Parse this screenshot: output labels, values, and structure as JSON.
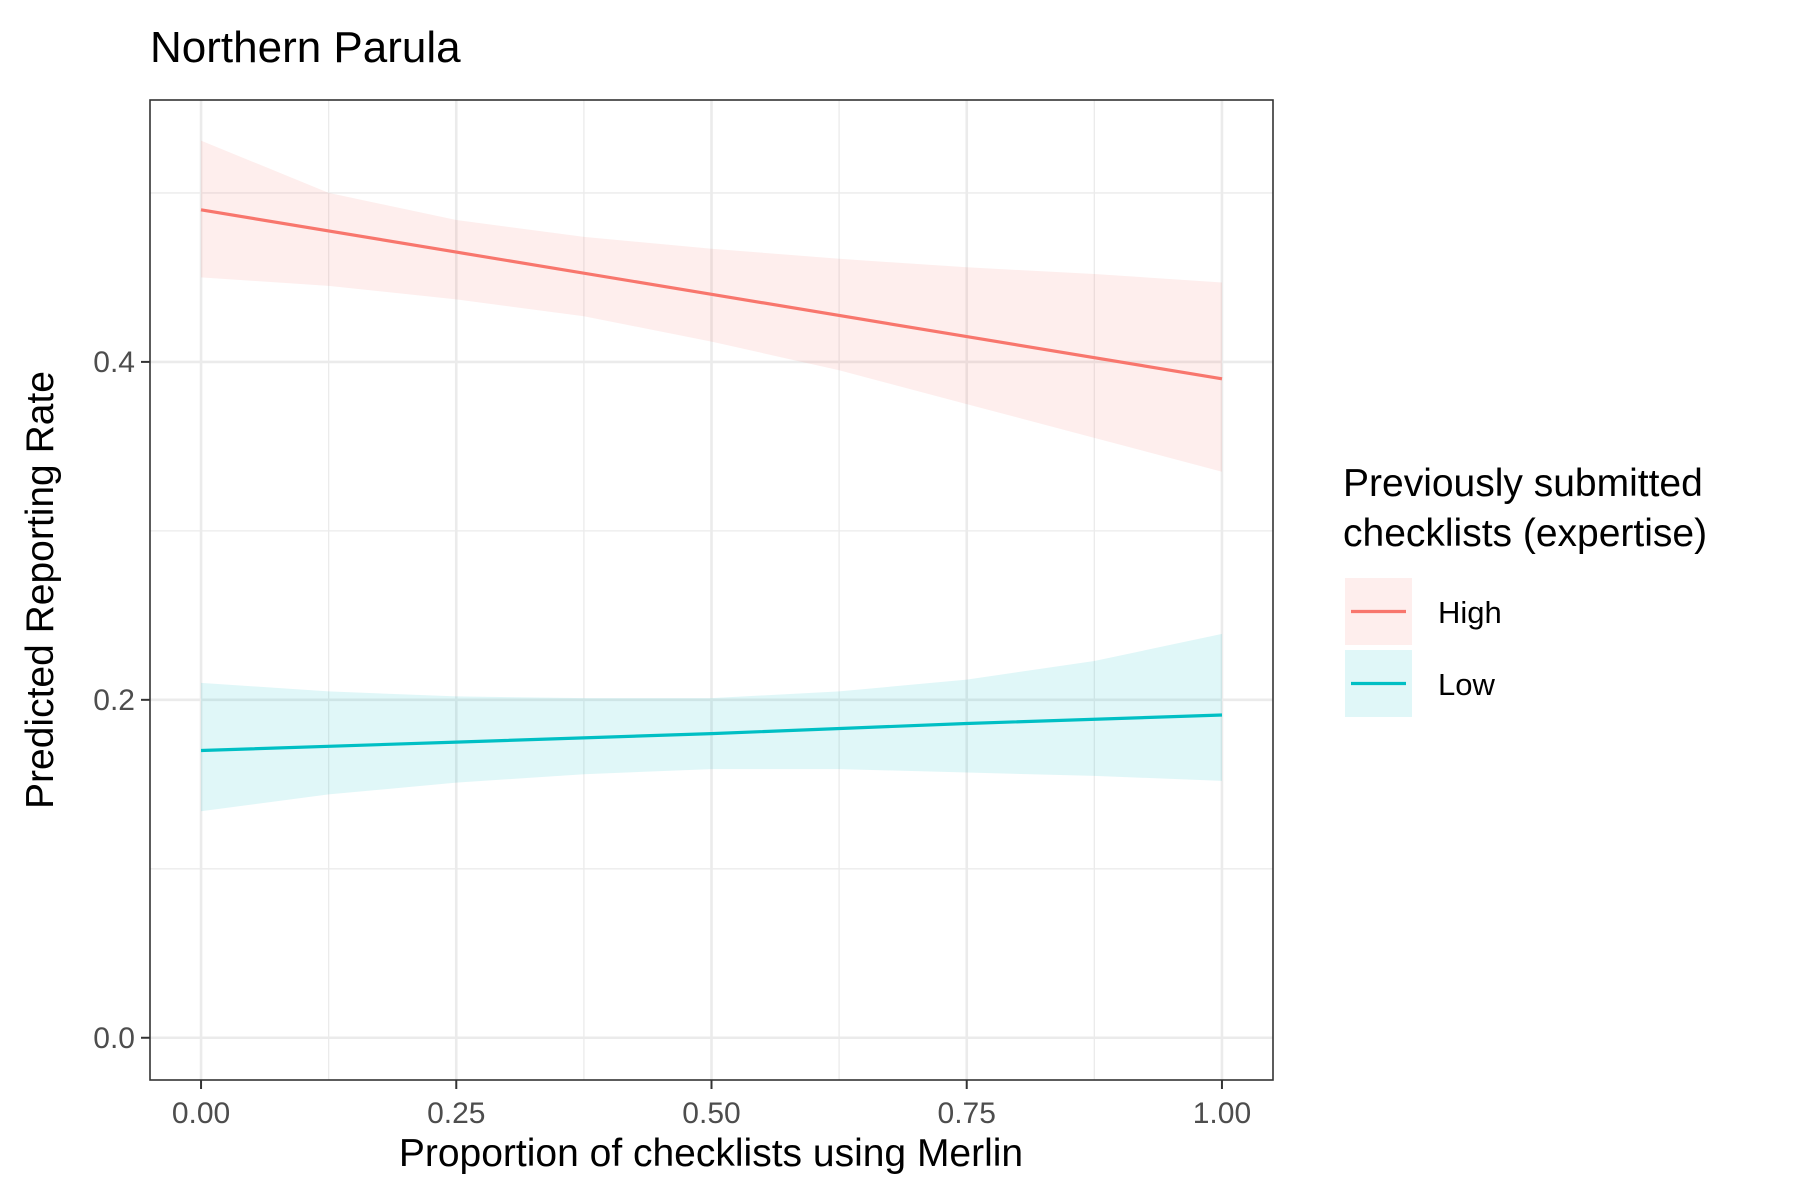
{
  "chart_data": {
    "type": "line",
    "title": "Northern Parula",
    "xlabel": "Proportion of checklists using Merlin",
    "ylabel": "Predicted Reporting Rate",
    "xlim": [
      -0.05,
      1.05
    ],
    "ylim": [
      -0.025,
      0.555
    ],
    "x_ticks": [
      0,
      0.25,
      0.5,
      0.75,
      1
    ],
    "x_tick_labels": [
      "0.00",
      "0.25",
      "0.50",
      "0.75",
      "1.00"
    ],
    "y_ticks": [
      0,
      0.2,
      0.4
    ],
    "y_tick_labels": [
      "0.0",
      "0.2",
      "0.4"
    ],
    "grid": true,
    "legend": {
      "title_lines": [
        "Previously submitted",
        "checklists (expertise)"
      ],
      "position": "right"
    },
    "series": [
      {
        "name": "High",
        "color": "#F8766D",
        "x": [
          0,
          0.25,
          0.5,
          0.75,
          1
        ],
        "y": [
          0.49,
          0.465,
          0.44,
          0.415,
          0.39
        ],
        "ribbon": {
          "x": [
            0,
            0.125,
            0.25,
            0.375,
            0.5,
            0.625,
            0.75,
            0.875,
            1
          ],
          "lower": [
            0.45,
            0.445,
            0.437,
            0.427,
            0.412,
            0.395,
            0.375,
            0.355,
            0.335
          ],
          "upper": [
            0.531,
            0.5,
            0.484,
            0.474,
            0.467,
            0.461,
            0.456,
            0.452,
            0.447
          ]
        }
      },
      {
        "name": "Low",
        "color": "#00BFC4",
        "x": [
          0,
          0.25,
          0.5,
          0.75,
          1
        ],
        "y": [
          0.17,
          0.175,
          0.18,
          0.186,
          0.191
        ],
        "ribbon": {
          "x": [
            0,
            0.125,
            0.25,
            0.375,
            0.5,
            0.625,
            0.75,
            0.875,
            1
          ],
          "lower": [
            0.134,
            0.144,
            0.151,
            0.156,
            0.159,
            0.159,
            0.157,
            0.155,
            0.152
          ],
          "upper": [
            0.21,
            0.205,
            0.202,
            0.201,
            0.201,
            0.205,
            0.212,
            0.223,
            0.239
          ]
        }
      }
    ]
  }
}
